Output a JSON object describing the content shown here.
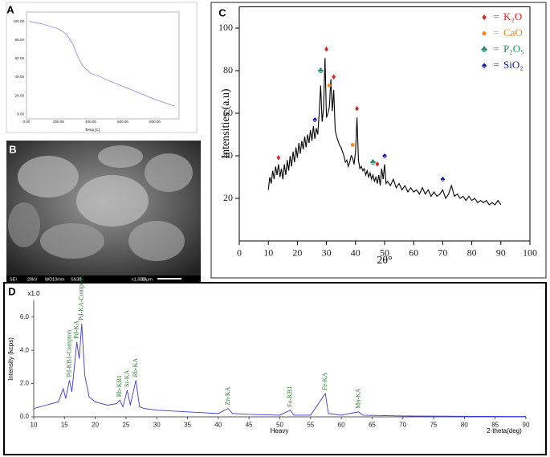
{
  "chart_data": [
    {
      "type": "line",
      "label": "A",
      "xlabel": "Temp [C]",
      "color": "#8a8ae0",
      "x": [
        20,
        100,
        200,
        250,
        290,
        320,
        350,
        400,
        450,
        500,
        600,
        700,
        800,
        900,
        920
      ],
      "values": [
        100,
        97,
        92,
        86,
        75,
        62,
        52,
        44,
        41,
        37,
        30,
        23,
        16,
        10,
        9
      ],
      "xlim": [
        0,
        950
      ],
      "ylim": [
        -5,
        110
      ],
      "xticks": [
        {
          "value": 0,
          "label": "0.00"
        },
        {
          "value": 200,
          "label": "200.00"
        },
        {
          "value": 400,
          "label": "400.00"
        },
        {
          "value": 600,
          "label": "600.00"
        },
        {
          "value": 800,
          "label": "800.00"
        }
      ],
      "yticks": [
        {
          "value": 0,
          "label": "0.00"
        },
        {
          "value": 20,
          "label": "20.00"
        },
        {
          "value": 40,
          "label": "40.00"
        },
        {
          "value": 60,
          "label": "60.00"
        },
        {
          "value": 80,
          "label": "80.00"
        },
        {
          "value": 100,
          "label": "100.00"
        }
      ]
    },
    {
      "type": "line",
      "label": "C",
      "xlabel": "2θ°",
      "ylabel": "Intensities (a.u)",
      "color": "#000000",
      "x": [
        10,
        10.5,
        11,
        11.5,
        12,
        12.5,
        13,
        13.5,
        14,
        14.5,
        15,
        15.5,
        16,
        16.5,
        17,
        17.5,
        18,
        18.5,
        19,
        19.5,
        20,
        20.5,
        21,
        21.5,
        22,
        22.5,
        23,
        23.5,
        24,
        24.5,
        25,
        25.5,
        26,
        26.5,
        27,
        27.5,
        28,
        28.5,
        29,
        29.5,
        30,
        30.5,
        31,
        31.5,
        32,
        32.5,
        33,
        33.5,
        34,
        34.5,
        35,
        35.5,
        36,
        36.5,
        37,
        37.5,
        38,
        38.5,
        39,
        39.5,
        40,
        40.5,
        41,
        41.5,
        42,
        42.5,
        43,
        43.5,
        44,
        44.5,
        45,
        45.5,
        46,
        46.5,
        47,
        47.5,
        48,
        48.5,
        49,
        49.5,
        50,
        50.5,
        51,
        52,
        53,
        54,
        55,
        56,
        57,
        58,
        59,
        60,
        61,
        62,
        63,
        64,
        65,
        66,
        67,
        68,
        69,
        70,
        71,
        72,
        73,
        74,
        75,
        76,
        77,
        78,
        79,
        80,
        81,
        82,
        83,
        84,
        85,
        86,
        87,
        88,
        89,
        90
      ],
      "values": [
        24,
        30,
        27,
        33,
        29,
        35,
        31,
        36,
        30,
        34,
        29,
        36,
        31,
        38,
        33,
        40,
        35,
        42,
        37,
        44,
        39,
        46,
        41,
        47,
        43,
        49,
        44,
        50,
        46,
        52,
        47,
        54,
        48,
        53,
        50,
        60,
        73,
        56,
        62,
        86,
        58,
        60,
        63,
        76,
        61,
        71,
        52,
        49,
        47,
        45,
        44,
        42,
        40,
        37,
        38,
        35,
        37,
        40,
        39,
        36,
        42,
        58,
        38,
        34,
        35,
        33,
        34,
        31,
        33,
        30,
        32,
        29,
        31,
        28,
        30,
        27,
        31,
        26,
        34,
        29,
        36,
        27,
        28,
        26,
        29,
        25,
        27,
        24,
        26,
        23,
        25,
        23,
        24,
        22,
        25,
        22,
        24,
        21,
        23,
        21,
        22,
        24,
        20,
        22,
        26,
        21,
        22,
        20,
        21,
        19,
        21,
        19,
        20,
        18,
        19,
        18,
        19,
        17,
        18,
        17,
        19,
        17
      ],
      "xlim": [
        0,
        100
      ],
      "ylim": [
        0,
        110
      ],
      "xticks": [
        0,
        10,
        20,
        30,
        40,
        50,
        60,
        70,
        80,
        90,
        100
      ],
      "yticks": [
        20,
        40,
        60,
        80,
        100
      ],
      "legend_separator": "=",
      "marker_series": [
        {
          "name": "K₂O",
          "symbol": "♦",
          "color": "#e02020",
          "x": [
            13.5,
            30,
            32.5,
            40.5,
            47.5
          ],
          "values": [
            39,
            90,
            77,
            62,
            36
          ]
        },
        {
          "name": "CaO",
          "symbol": "●",
          "color": "#f08a24",
          "x": [
            31,
            39
          ],
          "values": [
            73,
            45
          ]
        },
        {
          "name": "P₂O₅",
          "symbol": "♣",
          "color": "#1f8a70",
          "x": [
            28,
            46
          ],
          "values": [
            80,
            37
          ]
        },
        {
          "name": "SiO₂",
          "symbol": "♠",
          "color": "#1a1aa8",
          "x": [
            26,
            50,
            70
          ],
          "values": [
            57,
            40,
            29
          ]
        }
      ]
    },
    {
      "type": "line",
      "label": "D",
      "xlabel": "2-theta(deg)",
      "ylabel": "Intensity (kcps)",
      "note": "Heavy",
      "scale": "x1.0",
      "color": "#3a3ad0",
      "x": [
        10,
        11,
        12,
        13,
        14,
        14.8,
        15.2,
        15.8,
        16.2,
        17,
        17.4,
        17.8,
        18.3,
        19,
        20,
        22,
        23.5,
        24,
        24.5,
        25.2,
        25.7,
        26.6,
        27.2,
        28,
        30,
        35,
        40,
        41.6,
        42.3,
        45,
        50,
        51.7,
        52.3,
        55,
        57.4,
        57.9,
        60,
        62.8,
        63.5,
        70,
        80,
        90
      ],
      "values": [
        0.5,
        0.6,
        0.7,
        0.8,
        0.9,
        1.7,
        1.1,
        2.2,
        1.5,
        4.5,
        3.5,
        5.6,
        2.5,
        1.2,
        0.9,
        0.7,
        0.8,
        1.0,
        0.6,
        1.6,
        0.7,
        2.2,
        0.6,
        0.5,
        0.4,
        0.3,
        0.2,
        0.5,
        0.2,
        0.15,
        0.1,
        0.4,
        0.1,
        0.1,
        1.4,
        0.2,
        0.1,
        0.3,
        0.1,
        0.05,
        0.03,
        0.02
      ],
      "xlim": [
        10,
        90
      ],
      "ylim": [
        0,
        7
      ],
      "xticks": [
        10,
        15,
        20,
        25,
        30,
        35,
        40,
        45,
        50,
        55,
        60,
        65,
        70,
        75,
        80,
        85,
        90
      ],
      "yticks": [
        {
          "value": 0,
          "label": "0.0"
        },
        {
          "value": 2,
          "label": "2.0"
        },
        {
          "value": 4,
          "label": "4.0"
        },
        {
          "value": 6,
          "label": "6.0"
        }
      ],
      "annotations": [
        {
          "text": "Pd-KB1-Compton",
          "x": 15.8,
          "y": 2.2
        },
        {
          "text": "Pd-KA",
          "x": 17,
          "y": 4.5
        },
        {
          "text": "Pd-KA-Compton",
          "x": 17.8,
          "y": 5.6
        },
        {
          "text": "Rb-KB1",
          "x": 24,
          "y": 1.0
        },
        {
          "text": "Sr-KA",
          "x": 25.2,
          "y": 1.6
        },
        {
          "text": "Rb-KA",
          "x": 26.6,
          "y": 2.2
        },
        {
          "text": "Zn-KA",
          "x": 41.6,
          "y": 0.5
        },
        {
          "text": "Fe-KB1",
          "x": 51.7,
          "y": 0.4
        },
        {
          "text": "Fe-KA",
          "x": 57.4,
          "y": 1.4
        },
        {
          "text": "Mn-KA",
          "x": 62.8,
          "y": 0.3
        }
      ]
    }
  ],
  "sem_image": {
    "label": "B",
    "info": [
      "SEI",
      "20kV",
      "WD10mm",
      "SS30",
      "x1,500",
      "10μm"
    ]
  }
}
